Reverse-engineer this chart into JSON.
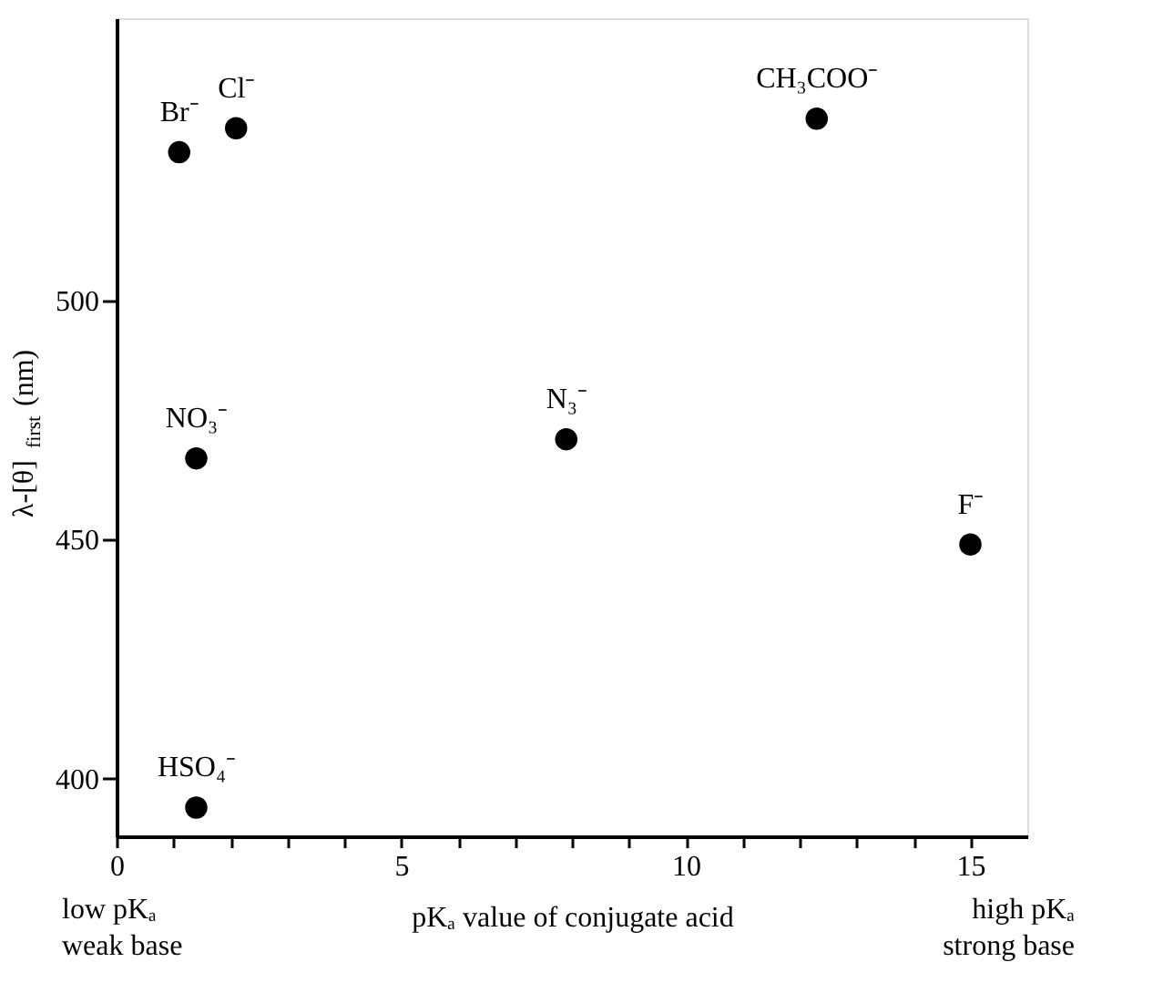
{
  "chart_data": {
    "type": "scatter",
    "xlabel": "pKₐ value of conjugate acid",
    "ylabel": "λ-[θ]$_{first}$ (nm)",
    "x": [
      1.1,
      2.1,
      1.4,
      1.4,
      12.3,
      7.9,
      15.0
    ],
    "series": [
      {
        "color": "#000000",
        "values": [
          531,
          536,
          467,
          394,
          538,
          471,
          449
        ]
      }
    ],
    "xlim": [
      0,
      16
    ],
    "xticks": [
      0,
      {
        "value": 1,
        "label": null
      },
      {
        "value": 2,
        "label": null
      },
      {
        "value": 3,
        "label": null
      },
      {
        "value": 4,
        "label": null
      },
      5,
      {
        "value": 6,
        "label": null
      },
      {
        "value": 7,
        "label": null
      },
      {
        "value": 8,
        "label": null
      },
      {
        "value": 9,
        "label": null
      },
      10,
      {
        "value": 11,
        "label": null
      },
      {
        "value": 12,
        "label": null
      },
      {
        "value": 13,
        "label": null
      },
      {
        "value": 14,
        "label": null
      },
      15
    ],
    "ylim": [
      388,
      559
    ],
    "yticks": [
      400,
      450,
      500
    ],
    "marker": "circle",
    "grid": false,
    "annotations": [
      {
        "text": "Br⁻",
        "x": 1.1,
        "y": 531
      },
      {
        "text": "Cl⁻",
        "x": 2.1,
        "y": 536
      },
      {
        "text": "NO₃⁻",
        "x": 1.4,
        "y": 467
      },
      {
        "text": "HSO₄⁻",
        "x": 1.4,
        "y": 394
      },
      {
        "text": "CH₃COO⁻",
        "x": 12.3,
        "y": 538
      },
      {
        "text": "N₃⁻",
        "x": 7.9,
        "y": 471
      },
      {
        "text": "F⁻",
        "x": 15.0,
        "y": 449
      },
      "low pKₐ\nweak base",
      "high pKₐ\nstrong base"
    ]
  }
}
